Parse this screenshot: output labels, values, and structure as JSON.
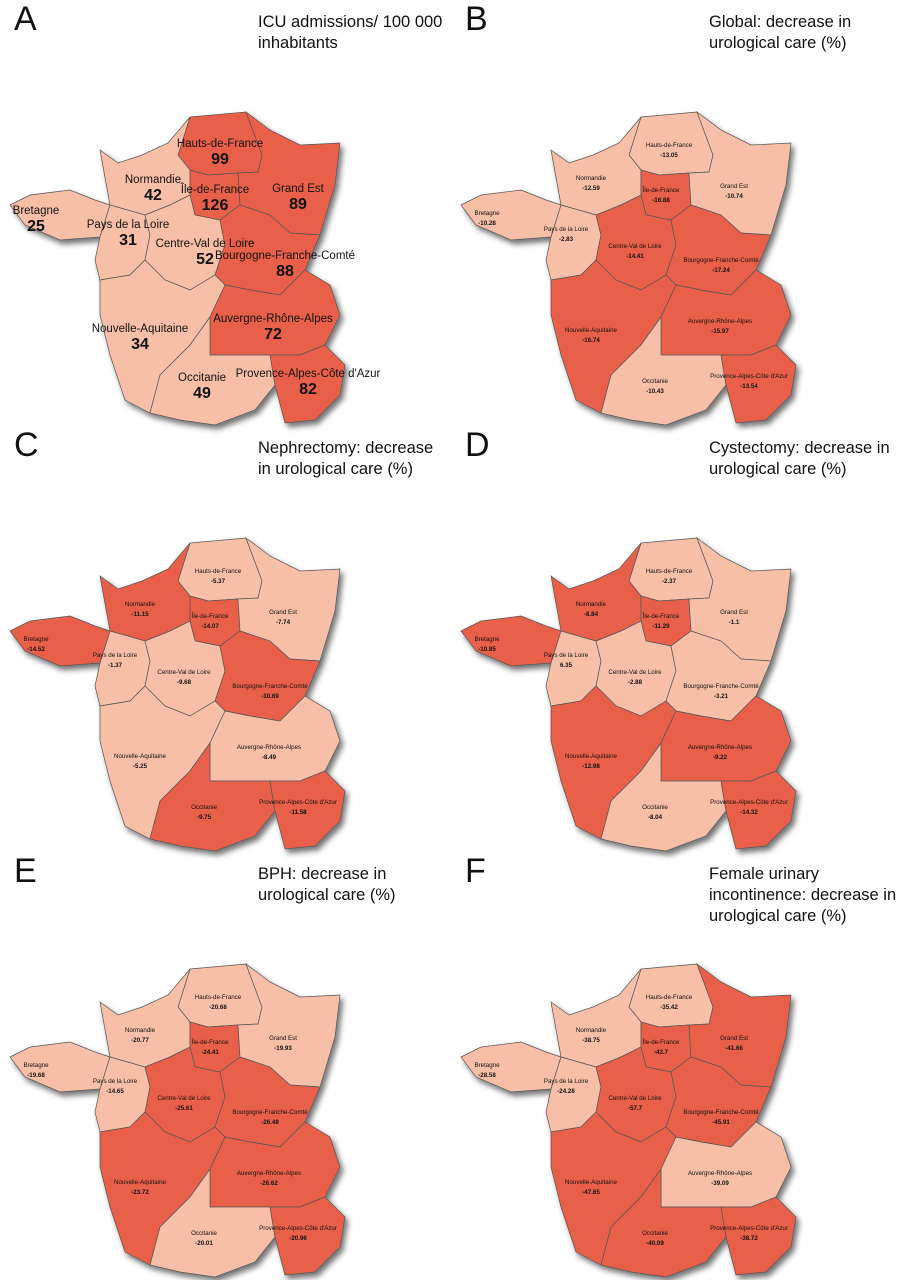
{
  "colors": {
    "high": "#e8604a",
    "low": "#f7bfa8"
  },
  "panels": [
    {
      "letter": "A",
      "title": "ICU admissions/ 100 000 inhabitants",
      "values": {
        "hdf": {
          "name": "Hauts-de-France",
          "value": "99",
          "level": "high"
        },
        "nor": {
          "name": "Normandie",
          "value": "42",
          "level": "low"
        },
        "idf": {
          "name": "Île-de-France",
          "value": "126",
          "level": "high"
        },
        "ge": {
          "name": "Grand Est",
          "value": "89",
          "level": "high"
        },
        "bre": {
          "name": "Bretagne",
          "value": "25",
          "level": "low"
        },
        "pdl": {
          "name": "Pays de la Loire",
          "value": "31",
          "level": "low"
        },
        "cvl": {
          "name": "Centre-Val de Loire",
          "value": "52",
          "level": "low"
        },
        "bfc": {
          "name": "Bourgogne-Franche-Comté",
          "value": "88",
          "level": "high"
        },
        "na": {
          "name": "Nouvelle-Aquitaine",
          "value": "34",
          "level": "low"
        },
        "ara": {
          "name": "Auvergne-Rhône-Alpes",
          "value": "72",
          "level": "high"
        },
        "occ": {
          "name": "Occitanie",
          "value": "49",
          "level": "low"
        },
        "paca": {
          "name": "Provence-Alpes-Côte d'Azur",
          "value": "82",
          "level": "high"
        }
      }
    },
    {
      "letter": "B",
      "title": "Global: decrease in urological care (%)",
      "values": {
        "hdf": {
          "name": "Hauts-de-France",
          "value": "-13.05",
          "level": "low"
        },
        "nor": {
          "name": "Normandie",
          "value": "-12.59",
          "level": "low"
        },
        "idf": {
          "name": "Île-de-France",
          "value": "-16.88",
          "level": "high"
        },
        "ge": {
          "name": "Grand Est",
          "value": "-10.74",
          "level": "low"
        },
        "bre": {
          "name": "Bretagne",
          "value": "-10.28",
          "level": "low"
        },
        "pdl": {
          "name": "Pays de la Loire",
          "value": "-2.83",
          "level": "low"
        },
        "cvl": {
          "name": "Centre-Val de Loire",
          "value": "-14.41",
          "level": "high"
        },
        "bfc": {
          "name": "Bourgogne-Franche-Comté",
          "value": "-17.24",
          "level": "high"
        },
        "na": {
          "name": "Nouvelle-Aquitaine",
          "value": "-16.74",
          "level": "high"
        },
        "ara": {
          "name": "Auvergne-Rhône-Alpes",
          "value": "-15.97",
          "level": "high"
        },
        "occ": {
          "name": "Occitanie",
          "value": "-10.43",
          "level": "low"
        },
        "paca": {
          "name": "Provence-Alpes-Côte d'Azur",
          "value": "-13.54",
          "level": "high"
        }
      }
    },
    {
      "letter": "C",
      "title": "Nephrectomy: decrease in urological care (%)",
      "values": {
        "hdf": {
          "name": "Hauts-de-France",
          "value": "-5.37",
          "level": "low"
        },
        "nor": {
          "name": "Normandie",
          "value": "-11.15",
          "level": "high"
        },
        "idf": {
          "name": "Île-de-France",
          "value": "-14.07",
          "level": "high"
        },
        "ge": {
          "name": "Grand Est",
          "value": "-7.74",
          "level": "low"
        },
        "bre": {
          "name": "Bretagne",
          "value": "-14.52",
          "level": "high"
        },
        "pdl": {
          "name": "Pays de la Loire",
          "value": "-1.37",
          "level": "low"
        },
        "cvl": {
          "name": "Centre-Val de Loire",
          "value": "-9.68",
          "level": "low"
        },
        "bfc": {
          "name": "Bourgogne-Franche-Comté",
          "value": "-10.69",
          "level": "high"
        },
        "na": {
          "name": "Nouvelle-Aquitaine",
          "value": "-5.25",
          "level": "low"
        },
        "ara": {
          "name": "Auvergne-Rhône-Alpes",
          "value": "-8.49",
          "level": "low"
        },
        "occ": {
          "name": "Occitanie",
          "value": "-9.75",
          "level": "high"
        },
        "paca": {
          "name": "Provence-Alpes-Côte d'Azur",
          "value": "-11.58",
          "level": "high"
        }
      }
    },
    {
      "letter": "D",
      "title": "Cystectomy: decrease in urological care (%)",
      "values": {
        "hdf": {
          "name": "Hauts-de-France",
          "value": "-2.37",
          "level": "low"
        },
        "nor": {
          "name": "Normandie",
          "value": "-8.84",
          "level": "high"
        },
        "idf": {
          "name": "Île-de-France",
          "value": "-11.29",
          "level": "high"
        },
        "ge": {
          "name": "Grand Est",
          "value": "-1.1",
          "level": "low"
        },
        "bre": {
          "name": "Bretagne",
          "value": "-10.85",
          "level": "high"
        },
        "pdl": {
          "name": "Pays de la Loire",
          "value": "6.35",
          "level": "low"
        },
        "cvl": {
          "name": "Centre-Val de Loire",
          "value": "-2.88",
          "level": "low"
        },
        "bfc": {
          "name": "Bourgogne-Franche-Comté",
          "value": "-3.21",
          "level": "low"
        },
        "na": {
          "name": "Nouvelle-Aquitaine",
          "value": "-12.98",
          "level": "high"
        },
        "ara": {
          "name": "Auvergne-Rhône-Alpes",
          "value": "-9.22",
          "level": "high"
        },
        "occ": {
          "name": "Occitanie",
          "value": "-8.04",
          "level": "low"
        },
        "paca": {
          "name": "Provence-Alpes-Côte d'Azur",
          "value": "-14.32",
          "level": "high"
        }
      }
    },
    {
      "letter": "E",
      "title": "BPH: decrease in urological care (%)",
      "values": {
        "hdf": {
          "name": "Hauts-de-France",
          "value": "-20.68",
          "level": "low"
        },
        "nor": {
          "name": "Normandie",
          "value": "-20.77",
          "level": "low"
        },
        "idf": {
          "name": "Île-de-France",
          "value": "-24.41",
          "level": "high"
        },
        "ge": {
          "name": "Grand Est",
          "value": "-19.93",
          "level": "low"
        },
        "bre": {
          "name": "Bretagne",
          "value": "-19.68",
          "level": "low"
        },
        "pdl": {
          "name": "Pays de la Loire",
          "value": "-14.65",
          "level": "low"
        },
        "cvl": {
          "name": "Centre-Val de Loire",
          "value": "-25.61",
          "level": "high"
        },
        "bfc": {
          "name": "Bourgogne-Franche-Comté",
          "value": "-26.48",
          "level": "high"
        },
        "na": {
          "name": "Nouvelle-Aquitaine",
          "value": "-23.72",
          "level": "high"
        },
        "ara": {
          "name": "Auvergne-Rhône-Alpes",
          "value": "-26.62",
          "level": "high"
        },
        "occ": {
          "name": "Occitanie",
          "value": "-20.01",
          "level": "low"
        },
        "paca": {
          "name": "Provence-Alpes-Côte d'Azur",
          "value": "-20.96",
          "level": "high"
        }
      }
    },
    {
      "letter": "F",
      "title": "Female urinary incontinence: decrease in urological care (%)",
      "values": {
        "hdf": {
          "name": "Hauts-de-France",
          "value": "-35.42",
          "level": "low"
        },
        "nor": {
          "name": "Normandie",
          "value": "-38.75",
          "level": "low"
        },
        "idf": {
          "name": "Île-de-France",
          "value": "-43.7",
          "level": "high"
        },
        "ge": {
          "name": "Grand Est",
          "value": "-41.66",
          "level": "high"
        },
        "bre": {
          "name": "Bretagne",
          "value": "-28.58",
          "level": "low"
        },
        "pdl": {
          "name": "Pays de la Loire",
          "value": "-24.28",
          "level": "low"
        },
        "cvl": {
          "name": "Centre-Val de Loire",
          "value": "-57.7",
          "level": "high"
        },
        "bfc": {
          "name": "Bourgogne-Franche-Comté",
          "value": "-45.91",
          "level": "high"
        },
        "na": {
          "name": "Nouvelle-Aquitaine",
          "value": "-47.65",
          "level": "high"
        },
        "ara": {
          "name": "Auvergne-Rhône-Alpes",
          "value": "-39.09",
          "level": "low"
        },
        "occ": {
          "name": "Occitanie",
          "value": "-40.09",
          "level": "high"
        },
        "paca": {
          "name": "Provence-Alpes-Côte d'Azur",
          "value": "-38.72",
          "level": "high"
        }
      }
    }
  ]
}
